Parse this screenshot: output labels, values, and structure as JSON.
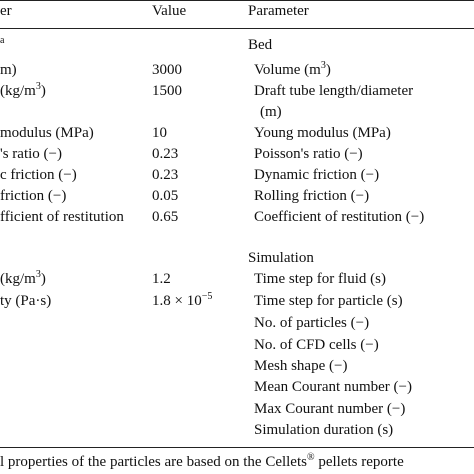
{
  "header": {
    "col1": "er",
    "col2": "Value",
    "col3": "Parameter"
  },
  "rows": [
    {
      "left": {
        "sup": "a"
      },
      "param": "Bed"
    },
    {
      "left": "m)",
      "value": "3000",
      "param": {
        "text": "Volume (m",
        "sup": "3",
        "post": ")"
      }
    },
    {
      "left": {
        "text": "(kg/m",
        "sup": "3",
        "post": ")"
      },
      "value": "1500",
      "param": "Draft tube length/diameter"
    },
    {
      "param": "(m)"
    },
    {
      "left": "modulus (MPa)",
      "value": "10",
      "param": "Young modulus (MPa)"
    },
    {
      "left": "'s ratio (−)",
      "value": "0.23",
      "param": "Poisson's ratio (−)"
    },
    {
      "left": "c friction (−)",
      "value": "0.23",
      "param": "Dynamic friction (−)"
    },
    {
      "left": "friction (−)",
      "value": "0.05",
      "param": "Rolling friction (−)"
    },
    {
      "left": "fficient of restitution",
      "value": "0.65",
      "param": "Coefficient of restitution (−)"
    },
    {
      "param": "Simulation"
    },
    {
      "left": {
        "text": "(kg/m",
        "sup": "3",
        "post": ")"
      },
      "value": "1.2",
      "param": "Time step for fluid (s)"
    },
    {
      "left": "ty (Pa·s)",
      "value": {
        "text": "1.8 × 10",
        "sup": "−5"
      },
      "param": "Time step for particle (s)"
    },
    {
      "param": "No. of particles (−)"
    },
    {
      "param": "No. of CFD cells (−)"
    },
    {
      "param": "Mesh shape (−)"
    },
    {
      "param": "Mean Courant number (−)"
    },
    {
      "param": "Max Courant number (−)"
    },
    {
      "param": "Simulation duration (s)"
    }
  ],
  "footnote": {
    "text": "l properties of the particles are based on the Cellets",
    "sup": "®",
    "post": " pellets reporte"
  }
}
